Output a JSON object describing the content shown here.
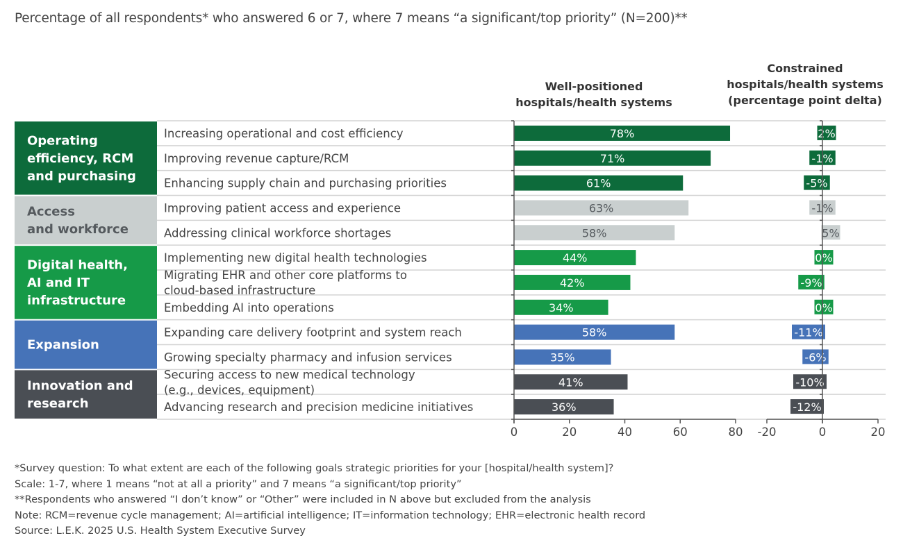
{
  "title": "Percentage of all respondents* who answered 6 or 7, where 7 means “a significant/top priority” (N=200)**",
  "chart_data": [
    {
      "type": "bar",
      "orientation": "horizontal",
      "title": "Well-positioned hospitals/health systems",
      "xlim": [
        0,
        80
      ],
      "xticks": [
        "0",
        "20",
        "40",
        "60",
        "80"
      ],
      "value_suffix": "%",
      "groups": [
        {
          "name": "Operating efficiency, RCM and purchasing",
          "color": "#0d6b3b",
          "label_color": "#ffffff"
        },
        {
          "name": "Access and workforce",
          "color": "#c9cfcf",
          "label_color": "#555a5e"
        },
        {
          "name": "Digital health, AI and IT infrastructure",
          "color": "#169a48",
          "label_color": "#ffffff"
        },
        {
          "name": "Expansion",
          "color": "#4673b8",
          "label_color": "#ffffff"
        },
        {
          "name": "Innovation and research",
          "color": "#4a4e54",
          "label_color": "#ffffff"
        }
      ],
      "categories": [
        {
          "label": "Increasing operational and cost efficiency",
          "group": 0
        },
        {
          "label": "Improving revenue capture/RCM",
          "group": 0
        },
        {
          "label": "Enhancing supply chain and purchasing priorities",
          "group": 0
        },
        {
          "label": "Improving patient access and experience",
          "group": 1
        },
        {
          "label": "Addressing clinical workforce shortages",
          "group": 1
        },
        {
          "label": "Implementing new digital health technologies",
          "group": 2
        },
        {
          "label": "Migrating EHR and other core platforms to\ncloud-based infrastructure",
          "group": 2
        },
        {
          "label": "Embedding AI into operations",
          "group": 2
        },
        {
          "label": "Expanding care delivery footprint and system reach",
          "group": 3
        },
        {
          "label": "Growing specialty pharmacy and infusion services",
          "group": 3
        },
        {
          "label": "Securing access to new medical technology\n(e.g., devices, equipment)",
          "group": 4
        },
        {
          "label": "Advancing research and precision medicine initiatives",
          "group": 4
        }
      ],
      "values": [
        78,
        71,
        61,
        63,
        58,
        44,
        42,
        34,
        58,
        35,
        41,
        36
      ]
    },
    {
      "type": "bar",
      "orientation": "horizontal",
      "title": "Constrained hospitals/health systems (percentage point delta)",
      "xlim": [
        -20,
        20
      ],
      "xticks": [
        "-20",
        "0",
        "20"
      ],
      "value_suffix": "%",
      "values": [
        2,
        -1,
        -5,
        -1,
        5,
        0,
        -9,
        0,
        -11,
        -6,
        -10,
        -12
      ]
    }
  ],
  "headers": {
    "left": [
      "Well-positioned",
      "hospitals/health systems"
    ],
    "right": [
      "Constrained",
      "hospitals/health systems",
      "(percentage point delta)"
    ]
  },
  "footnotes": [
    "*Survey question: To what extent are each of the following goals strategic priorities for your [hospital/health system]?",
    "Scale: 1-7, where 1 means “not at all a priority” and 7 means “a significant/top priority”",
    "**Respondents who answered “I don’t know” or “Other” were included in N above but excluded from the analysis",
    "Note: RCM=revenue cycle management; AI=artificial intelligence; IT=information technology; EHR=electronic health record",
    "Source: L.E.K. 2025 U.S. Health System Executive Survey"
  ]
}
